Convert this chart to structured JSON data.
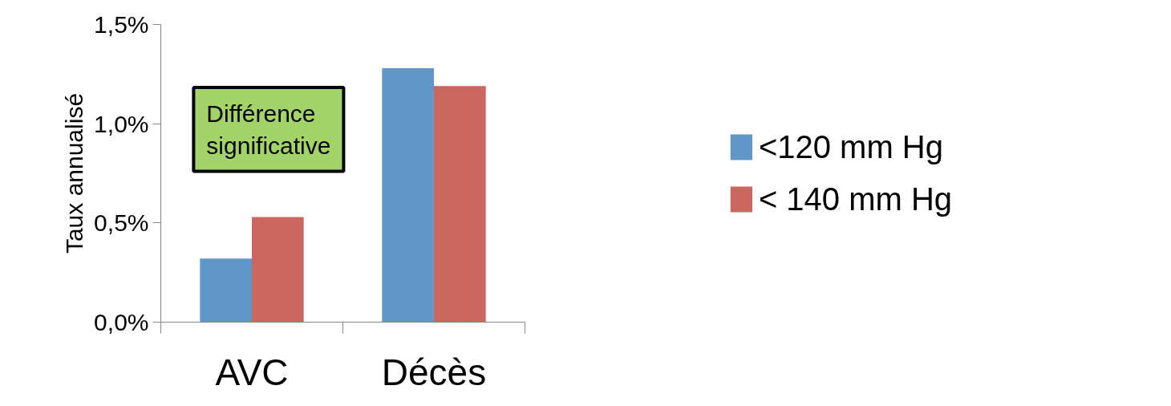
{
  "chart_data": {
    "type": "bar",
    "categories": [
      "AVC",
      "Décès"
    ],
    "ylabel": "Taux annualisé",
    "series": [
      {
        "name": "<120 mm Hg",
        "color": "#6196c9",
        "values": [
          0.32,
          1.28
        ]
      },
      {
        "name": "< 140 mm Hg",
        "color": "#cc6660",
        "values": [
          0.53,
          1.19
        ]
      }
    ],
    "ylim": [
      0,
      1.5
    ],
    "yticks": [
      {
        "value": 0,
        "label": "0,0%"
      },
      {
        "value": 0.5,
        "label": "0,5%"
      },
      {
        "value": 1,
        "label": "1,0%"
      },
      {
        "value": 1.5,
        "label": "1,5%"
      }
    ],
    "grid": false,
    "legend": "right",
    "annotations": [
      "Différence significative"
    ]
  }
}
